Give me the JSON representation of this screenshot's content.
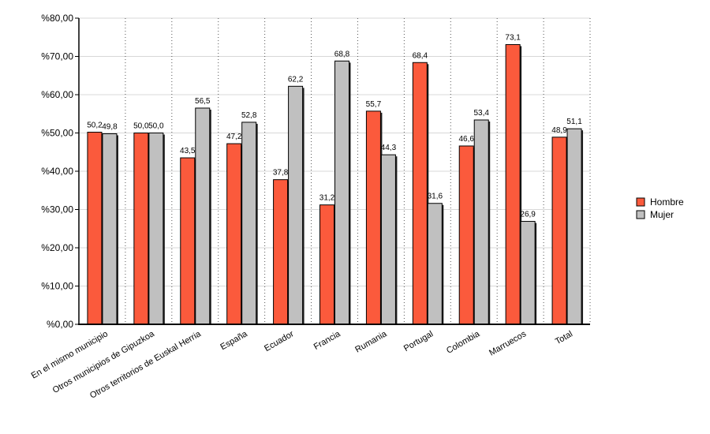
{
  "chart_data": {
    "type": "bar",
    "categories": [
      "En el mismo municipio",
      "Otros municipios de Gipuzkoa",
      "Otros territorios de Euskal Herria",
      "España",
      "Ecuador",
      "Francia",
      "Rumania",
      "Portugal",
      "Colombia",
      "Marruecos",
      "Total"
    ],
    "series": [
      {
        "name": "Hombre",
        "color": "#fb5a3c",
        "values": [
          50.2,
          50.0,
          43.5,
          47.2,
          37.8,
          31.2,
          55.7,
          68.4,
          46.6,
          73.1,
          48.9
        ],
        "labels": [
          "50,2",
          "50,0",
          "43,5",
          "47,2",
          "37,8",
          "31,2",
          "55,7",
          "68,4",
          "46,6",
          "73,1",
          "48,9"
        ]
      },
      {
        "name": "Mujer",
        "color": "#c0c0c0",
        "values": [
          49.8,
          50.0,
          56.5,
          52.8,
          62.2,
          68.8,
          44.3,
          31.6,
          53.4,
          26.9,
          51.1
        ],
        "labels": [
          "49,8",
          "50,0",
          "56,5",
          "52,8",
          "62,2",
          "68,8",
          "44,3",
          "31,6",
          "53,4",
          "26,9",
          "51,1"
        ]
      }
    ],
    "ylim": [
      0,
      80
    ],
    "yticks": [
      0,
      10,
      20,
      30,
      40,
      50,
      60,
      70,
      80
    ],
    "ytick_labels": [
      "%0,00",
      "%10,00",
      "%20,00",
      "%30,00",
      "%40,00",
      "%50,00",
      "%60,00",
      "%70,00",
      "%80,00"
    ],
    "grid": true,
    "legend_position": "right"
  }
}
